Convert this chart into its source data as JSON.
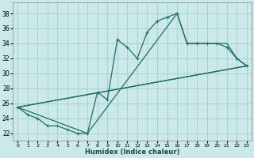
{
  "xlabel": "Humidex (Indice chaleur)",
  "xlim": [
    -0.5,
    23.5
  ],
  "ylim": [
    21.0,
    39.5
  ],
  "yticks": [
    22,
    24,
    26,
    28,
    30,
    32,
    34,
    36,
    38
  ],
  "xticks": [
    0,
    1,
    2,
    3,
    4,
    5,
    6,
    7,
    8,
    9,
    10,
    11,
    12,
    13,
    14,
    15,
    16,
    17,
    18,
    19,
    20,
    21,
    22,
    23
  ],
  "bg_color": "#cce9e9",
  "grid_color": "#aad0d0",
  "line_color": "#1a7068",
  "curve1_x": [
    0,
    1,
    2,
    3,
    4,
    5,
    6,
    7,
    8,
    9,
    10,
    11,
    12,
    13,
    14,
    15,
    16,
    17,
    18,
    19,
    20,
    21,
    22,
    23
  ],
  "curve1_y": [
    25.5,
    24.5,
    24.0,
    23.0,
    23.0,
    22.5,
    22.0,
    22.0,
    27.5,
    26.5,
    34.5,
    33.5,
    32.0,
    35.5,
    37.0,
    37.5,
    38.0,
    34.0,
    34.0,
    34.0,
    34.0,
    33.5,
    32.0,
    31.0
  ],
  "curve2_x": [
    0,
    7,
    16,
    17,
    21,
    22,
    23
  ],
  "curve2_y": [
    25.5,
    22.0,
    38.0,
    34.0,
    34.0,
    32.0,
    31.0
  ],
  "curve3_x": [
    0,
    23
  ],
  "curve3_y": [
    25.5,
    31.0
  ],
  "curve4_x": [
    0,
    23
  ],
  "curve4_y": [
    25.5,
    31.0
  ]
}
